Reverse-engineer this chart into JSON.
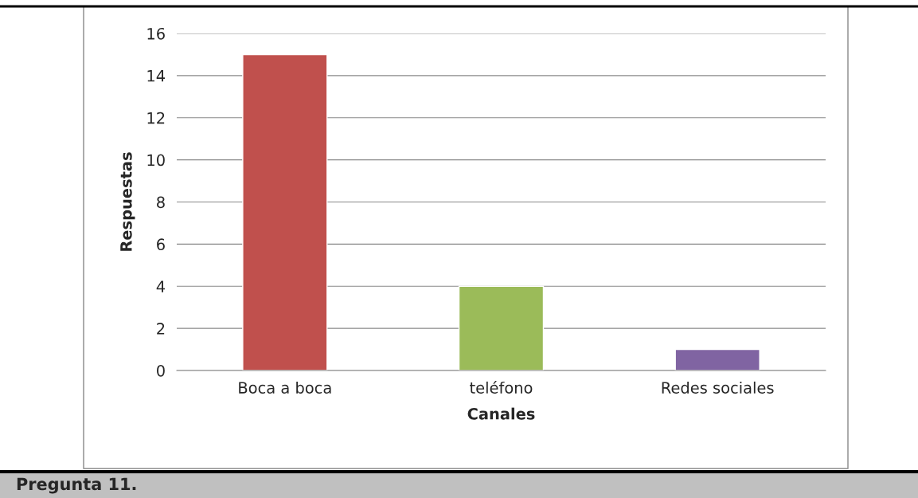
{
  "chart_data": {
    "type": "bar",
    "xlabel": "Canales",
    "ylabel": "Respuestas",
    "categories": [
      "Boca a boca",
      "teléfono",
      "Redes sociales"
    ],
    "values": [
      15,
      4,
      1
    ],
    "colors": [
      "#c0504d",
      "#9bbb59",
      "#8064a2"
    ],
    "ylim": [
      0,
      16
    ],
    "yticks": [
      0,
      2,
      4,
      6,
      8,
      10,
      12,
      14,
      16
    ],
    "grid": "y",
    "legend": false,
    "annotations": [
      "Pregunta 11."
    ]
  }
}
